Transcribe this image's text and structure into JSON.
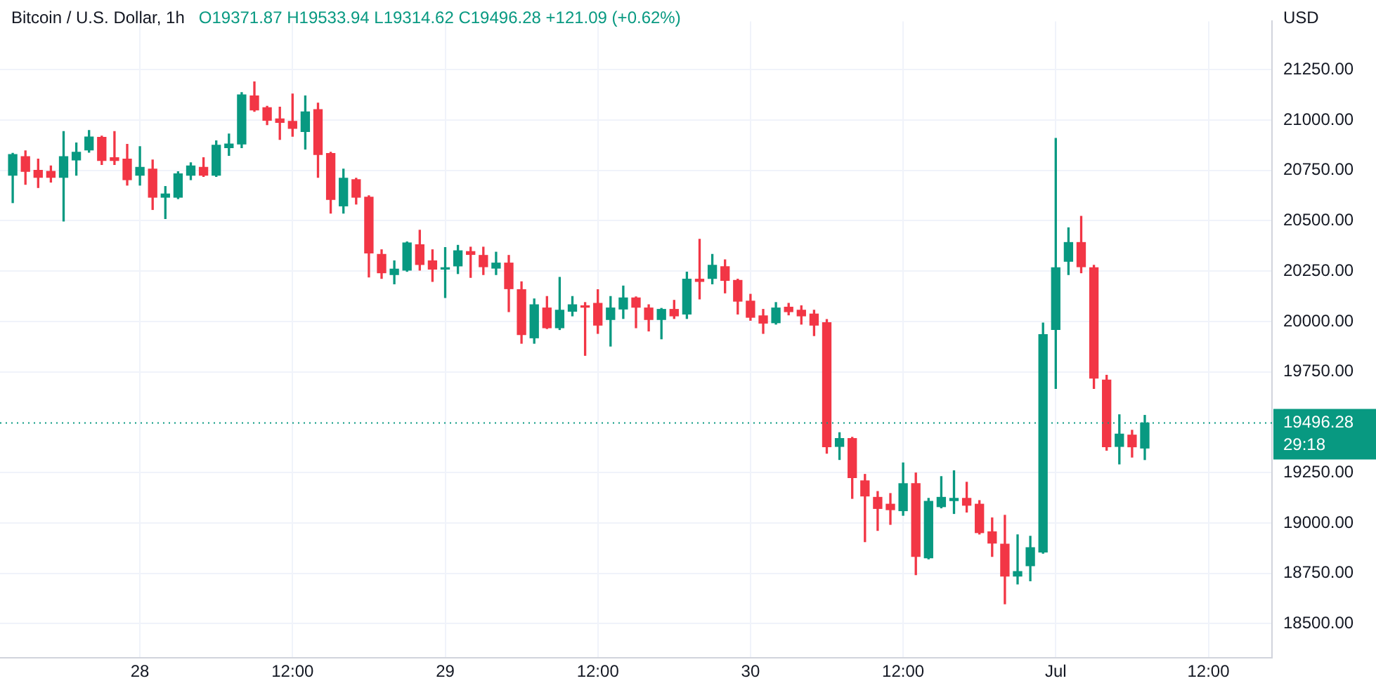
{
  "chart_data": {
    "type": "candlestick",
    "title": "Bitcoin / U.S. Dollar, 1h",
    "subtitle": "O19371.87 H19533.94 L19314.62 C19496.28 +121.09 (+0.62%)",
    "ylabel": "USD",
    "x": [
      "--06-27T14:00",
      "--06-27T15:00",
      "--06-27T16:00",
      "--06-27T17:00",
      "--06-27T18:00",
      "--06-27T19:00",
      "--06-27T20:00",
      "--06-27T21:00",
      "--06-27T22:00",
      "--06-27T23:00",
      "--06-28T00:00",
      "--06-28T01:00",
      "--06-28T02:00",
      "--06-28T03:00",
      "--06-28T04:00",
      "--06-28T05:00",
      "--06-28T06:00",
      "--06-28T07:00",
      "--06-28T08:00",
      "--06-28T09:00",
      "--06-28T10:00",
      "--06-28T11:00",
      "--06-28T12:00",
      "--06-28T13:00",
      "--06-28T14:00",
      "--06-28T15:00",
      "--06-28T16:00",
      "--06-28T17:00",
      "--06-28T18:00",
      "--06-28T19:00",
      "--06-28T20:00",
      "--06-28T21:00",
      "--06-28T22:00",
      "--06-28T23:00",
      "--06-29T00:00",
      "--06-29T01:00",
      "--06-29T02:00",
      "--06-29T03:00",
      "--06-29T04:00",
      "--06-29T05:00",
      "--06-29T06:00",
      "--06-29T07:00",
      "--06-29T08:00",
      "--06-29T09:00",
      "--06-29T10:00",
      "--06-29T11:00",
      "--06-29T12:00",
      "--06-29T13:00",
      "--06-29T14:00",
      "--06-29T15:00",
      "--06-29T16:00",
      "--06-29T17:00",
      "--06-29T18:00",
      "--06-29T19:00",
      "--06-29T20:00",
      "--06-29T21:00",
      "--06-29T22:00",
      "--06-29T23:00",
      "--06-30T00:00",
      "--06-30T01:00",
      "--06-30T02:00",
      "--06-30T03:00",
      "--06-30T04:00",
      "--06-30T05:00",
      "--06-30T06:00",
      "--06-30T07:00",
      "--06-30T08:00",
      "--06-30T09:00",
      "--06-30T10:00",
      "--06-30T11:00",
      "--06-30T12:00",
      "--06-30T13:00",
      "--06-30T14:00",
      "--06-30T15:00",
      "--06-30T16:00",
      "--06-30T17:00",
      "--06-30T18:00",
      "--06-30T19:00",
      "--06-30T20:00",
      "--06-30T21:00",
      "--06-30T22:00",
      "--06-30T23:00",
      "--07-01T00:00",
      "--07-01T01:00",
      "--07-01T02:00",
      "--07-01T03:00",
      "--07-01T04:00",
      "--07-01T05:00",
      "--07-01T06:00",
      "--07-01T07:00"
    ],
    "ohlc": [
      [
        20726,
        20835,
        20590,
        20829
      ],
      [
        20818,
        20847,
        20681,
        20745
      ],
      [
        20750,
        20806,
        20665,
        20716
      ],
      [
        20745,
        20772,
        20692,
        20716
      ],
      [
        20716,
        20943,
        20499,
        20818
      ],
      [
        20802,
        20886,
        20726,
        20840
      ],
      [
        20852,
        20948,
        20840,
        20916
      ],
      [
        20914,
        20920,
        20779,
        20799
      ],
      [
        20813,
        20943,
        20779,
        20799
      ],
      [
        20806,
        20879,
        20677,
        20704
      ],
      [
        20726,
        20868,
        20677,
        20765
      ],
      [
        20756,
        20802,
        20556,
        20617
      ],
      [
        20617,
        20670,
        20511,
        20633
      ],
      [
        20617,
        20743,
        20610,
        20733
      ],
      [
        20726,
        20788,
        20704,
        20772
      ],
      [
        20765,
        20813,
        20720,
        20726
      ],
      [
        20726,
        20897,
        20720,
        20875
      ],
      [
        20863,
        20931,
        20825,
        20881
      ],
      [
        20881,
        21136,
        20863,
        21125
      ],
      [
        21120,
        21189,
        21043,
        21050
      ],
      [
        21061,
        21068,
        20977,
        20999
      ],
      [
        21006,
        21064,
        20904,
        20988
      ],
      [
        20993,
        21129,
        20920,
        20959
      ],
      [
        20943,
        21120,
        20856,
        21040
      ],
      [
        21052,
        21084,
        20716,
        20829
      ],
      [
        20834,
        20840,
        20538,
        20606
      ],
      [
        20574,
        20756,
        20538,
        20711
      ],
      [
        20704,
        20711,
        20583,
        20617
      ],
      [
        20617,
        20624,
        20221,
        20340
      ],
      [
        20333,
        20356,
        20214,
        20242
      ],
      [
        20233,
        20301,
        20187,
        20260
      ],
      [
        20255,
        20395,
        20249,
        20390
      ],
      [
        20381,
        20453,
        20255,
        20283
      ],
      [
        20301,
        20356,
        20199,
        20260
      ],
      [
        20260,
        20367,
        20119,
        20265
      ],
      [
        20276,
        20378,
        20238,
        20351
      ],
      [
        20347,
        20369,
        20219,
        20333
      ],
      [
        20328,
        20369,
        20233,
        20272
      ],
      [
        20265,
        20344,
        20233,
        20290
      ],
      [
        20290,
        20328,
        20049,
        20163
      ],
      [
        20158,
        20197,
        19892,
        19935
      ],
      [
        19919,
        20112,
        19892,
        20083
      ],
      [
        20067,
        20124,
        19965,
        19969
      ],
      [
        19969,
        20219,
        19960,
        20056
      ],
      [
        20051,
        20124,
        20028,
        20083
      ],
      [
        20078,
        20094,
        19832,
        20071
      ],
      [
        20090,
        20158,
        19941,
        19982
      ],
      [
        20010,
        20124,
        19878,
        20067
      ],
      [
        20062,
        20176,
        20015,
        20117
      ],
      [
        20117,
        20122,
        19969,
        20071
      ],
      [
        20067,
        20083,
        19953,
        20010
      ],
      [
        20010,
        20065,
        19914,
        20060
      ],
      [
        20060,
        20105,
        20015,
        20028
      ],
      [
        20037,
        20245,
        20015,
        20210
      ],
      [
        20210,
        20408,
        20112,
        20199
      ],
      [
        20214,
        20333,
        20187,
        20279
      ],
      [
        20272,
        20306,
        20142,
        20204
      ],
      [
        20204,
        20210,
        20037,
        20101
      ],
      [
        20101,
        20135,
        20006,
        20021
      ],
      [
        20028,
        20060,
        19941,
        19992
      ],
      [
        19994,
        20094,
        19987,
        20067
      ],
      [
        20071,
        20090,
        20033,
        20049
      ],
      [
        20056,
        20078,
        19987,
        20028
      ],
      [
        20037,
        20056,
        19930,
        19982
      ],
      [
        19994,
        20010,
        19346,
        19378
      ],
      [
        19380,
        19448,
        19315,
        19419
      ],
      [
        19419,
        19425,
        19122,
        19225
      ],
      [
        19209,
        19241,
        18907,
        19134
      ],
      [
        19127,
        19156,
        18963,
        19072
      ],
      [
        19093,
        19146,
        18993,
        19066
      ],
      [
        19061,
        19298,
        19038,
        19195
      ],
      [
        19195,
        19248,
        18743,
        18834
      ],
      [
        18827,
        19122,
        18822,
        19107
      ],
      [
        19081,
        19230,
        19075,
        19127
      ],
      [
        19111,
        19259,
        19047,
        19122
      ],
      [
        19122,
        19202,
        19054,
        19088
      ],
      [
        19093,
        19111,
        18945,
        18952
      ],
      [
        18956,
        19025,
        18834,
        18900
      ],
      [
        18895,
        19038,
        18599,
        18736
      ],
      [
        18736,
        18941,
        18697,
        18759
      ],
      [
        18788,
        18934,
        18713,
        18877
      ],
      [
        18856,
        19992,
        18850,
        19935
      ],
      [
        19960,
        20909,
        19668,
        20267
      ],
      [
        20299,
        20465,
        20233,
        20392
      ],
      [
        20392,
        20522,
        20242,
        20272
      ],
      [
        20267,
        20279,
        19668,
        19719
      ],
      [
        19709,
        19733,
        19361,
        19378
      ],
      [
        19380,
        19537,
        19293,
        19441
      ],
      [
        19436,
        19460,
        19327,
        19378
      ],
      [
        19371.87,
        19533.94,
        19314.62,
        19496.28
      ]
    ],
    "colors": [
      "#089981",
      "#f23645",
      "#f23645",
      "#f23645",
      "#089981",
      "#089981",
      "#089981",
      "#f23645",
      "#f23645",
      "#f23645",
      "#089981",
      "#f23645",
      "#089981",
      "#089981",
      "#089981",
      "#f23645",
      "#089981",
      "#089981",
      "#089981",
      "#f23645",
      "#f23645",
      "#f23645",
      "#f23645",
      "#089981",
      "#f23645",
      "#f23645",
      "#089981",
      "#f23645",
      "#f23645",
      "#f23645",
      "#089981",
      "#089981",
      "#f23645",
      "#f23645",
      "#089981",
      "#089981",
      "#f23645",
      "#f23645",
      "#089981",
      "#f23645",
      "#f23645",
      "#089981",
      "#f23645",
      "#089981",
      "#089981",
      "#f23645",
      "#f23645",
      "#089981",
      "#089981",
      "#f23645",
      "#f23645",
      "#089981",
      "#f23645",
      "#089981",
      "#f23645",
      "#089981",
      "#f23645",
      "#f23645",
      "#f23645",
      "#f23645",
      "#089981",
      "#f23645",
      "#f23645",
      "#f23645",
      "#f23645",
      "#089981",
      "#f23645",
      "#f23645",
      "#f23645",
      "#f23645",
      "#089981",
      "#f23645",
      "#089981",
      "#089981",
      "#089981",
      "#f23645",
      "#f23645",
      "#f23645",
      "#f23645",
      "#089981",
      "#089981",
      "#089981",
      "#089981",
      "#089981",
      "#f23645",
      "#f23645",
      "#f23645",
      "#089981",
      "#f23645",
      "#089981"
    ],
    "xlim": [
      "--06-27T13:00",
      "--07-01T17:00"
    ],
    "xticks": [
      {
        "value": "--06-28T00:00",
        "label": "28"
      },
      {
        "value": "--06-28T12:00",
        "label": "12:00"
      },
      {
        "value": "--06-29T00:00",
        "label": "29"
      },
      {
        "value": "--06-29T12:00",
        "label": "12:00"
      },
      {
        "value": "--06-30T00:00",
        "label": "30"
      },
      {
        "value": "--06-30T12:00",
        "label": "12:00"
      },
      {
        "value": "--07-01T00:00",
        "label": "Jul"
      },
      {
        "value": "--07-01T12:00",
        "label": "12:00"
      }
    ],
    "ylim": [
      18330,
      21490
    ],
    "yticks": [
      {
        "value": 18500,
        "label": "18500.00"
      },
      {
        "value": 18750,
        "label": "18750.00"
      },
      {
        "value": 19000,
        "label": "19000.00"
      },
      {
        "value": 19250,
        "label": "19250.00"
      },
      {
        "value": 19750,
        "label": "19750.00"
      },
      {
        "value": 20000,
        "label": "20000.00"
      },
      {
        "value": 20250,
        "label": "20250.00"
      },
      {
        "value": 20500,
        "label": "20500.00"
      },
      {
        "value": 20750,
        "label": "20750.00"
      },
      {
        "value": 21000,
        "label": "21000.00"
      },
      {
        "value": 21250,
        "label": "21250.00"
      }
    ],
    "ref_lines": [
      {
        "axis": "y",
        "value": 19496.28,
        "label": "19496.28",
        "color": "#089981",
        "line_style": "dotted"
      }
    ],
    "annotations": [
      "29:18"
    ],
    "grid": true,
    "legend": false
  }
}
